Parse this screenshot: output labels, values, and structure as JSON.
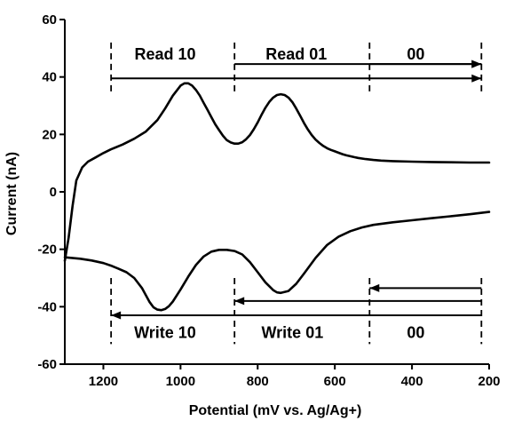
{
  "chart_data": {
    "type": "line",
    "xlabel": "Potential (mV vs. Ag/Ag+)",
    "ylabel": "Current (nA)",
    "xlim": [
      1300,
      200
    ],
    "ylim": [
      -60,
      60
    ],
    "x_reversed": true,
    "x_ticks": [
      1200,
      1000,
      800,
      600,
      400,
      200
    ],
    "y_ticks": [
      -60,
      -40,
      -20,
      0,
      20,
      40,
      60
    ],
    "grid": false,
    "line_color": "#000000",
    "series": [
      {
        "values_x": [
          1300,
          1290,
          1280,
          1270,
          1255,
          1240,
          1220,
          1200,
          1180,
          1150,
          1120,
          1090,
          1060,
          1040,
          1020,
          1000,
          990,
          980,
          970,
          960,
          950,
          940,
          930,
          920,
          910,
          900,
          890,
          880,
          870,
          860,
          850,
          840,
          830,
          820,
          810,
          800,
          790,
          780,
          770,
          760,
          750,
          740,
          730,
          720,
          710,
          700,
          690,
          680,
          670,
          660,
          650,
          640,
          630,
          620,
          610,
          600,
          590,
          580,
          570,
          560,
          550,
          540,
          520,
          500,
          480,
          450,
          400,
          350,
          300,
          250,
          200
        ],
        "values_y": [
          -24,
          -16,
          -5,
          4,
          8.5,
          10.5,
          12,
          13.5,
          14.8,
          16.5,
          18.5,
          21,
          25,
          29,
          33.5,
          37,
          37.8,
          37.8,
          37,
          35.5,
          33.5,
          31,
          28.5,
          26,
          23.5,
          21.5,
          19.5,
          18,
          17.2,
          16.8,
          16.8,
          17.3,
          18.3,
          19.8,
          21.8,
          24.2,
          26.8,
          29.3,
          31.3,
          32.8,
          33.7,
          34,
          33.7,
          32.8,
          31.2,
          29,
          26.5,
          24,
          21.7,
          19.8,
          18.2,
          17,
          16,
          15.2,
          14.6,
          14.1,
          13.6,
          13.1,
          12.7,
          12.4,
          12.1,
          11.8,
          11.4,
          11.1,
          10.9,
          10.7,
          10.5,
          10.4,
          10.3,
          10.2,
          10.2
        ]
      },
      {
        "values_x": [
          200,
          250,
          300,
          350,
          400,
          450,
          500,
          530,
          560,
          590,
          620,
          650,
          680,
          700,
          720,
          740,
          750,
          760,
          780,
          800,
          820,
          840,
          860,
          880,
          900,
          920,
          940,
          960,
          980,
          1000,
          1020,
          1030,
          1040,
          1050,
          1060,
          1070,
          1080,
          1090,
          1100,
          1120,
          1140,
          1160,
          1180,
          1200,
          1230,
          1260,
          1300
        ],
        "values_y": [
          -7,
          -7.8,
          -8.5,
          -9.2,
          -9.9,
          -10.6,
          -11.5,
          -12.4,
          -13.7,
          -15.6,
          -18.5,
          -23,
          -28.5,
          -32,
          -34.5,
          -35.2,
          -35,
          -34.2,
          -31.5,
          -28,
          -24.5,
          -21.8,
          -20.6,
          -20.2,
          -20.2,
          -20.8,
          -22.5,
          -25.5,
          -29.5,
          -34,
          -38.2,
          -39.8,
          -40.8,
          -41.2,
          -41,
          -40.2,
          -38.4,
          -36,
          -33.5,
          -30,
          -28,
          -26.8,
          -25.7,
          -24.8,
          -23.9,
          -23.3,
          -22.8
        ]
      }
    ],
    "read_dividers_x": [
      1180,
      860,
      510,
      220
    ],
    "write_dividers_x": [
      1180,
      860,
      510,
      220
    ],
    "annotations": {
      "read_labels": [
        {
          "text": "Read 10",
          "x": 1040,
          "y": 48
        },
        {
          "text": "Read 01",
          "x": 700,
          "y": 48
        },
        {
          "text": "00",
          "x": 390,
          "y": 48
        }
      ],
      "write_labels": [
        {
          "text": "Write 10",
          "x": 1040,
          "y": -49
        },
        {
          "text": "Write 01",
          "x": 710,
          "y": -49
        },
        {
          "text": "00",
          "x": 390,
          "y": -49
        }
      ],
      "right_arrows": [
        {
          "from": 860,
          "to": 220,
          "y": 44.5
        },
        {
          "from": 510,
          "to": 220,
          "y": 44.5
        },
        {
          "from": 1180,
          "to": 220,
          "y": 39.5
        }
      ],
      "left_arrows": [
        {
          "from": 220,
          "to": 510,
          "y": -33.5
        },
        {
          "from": 220,
          "to": 860,
          "y": -38
        },
        {
          "from": 220,
          "to": 1180,
          "y": -43
        }
      ]
    }
  }
}
